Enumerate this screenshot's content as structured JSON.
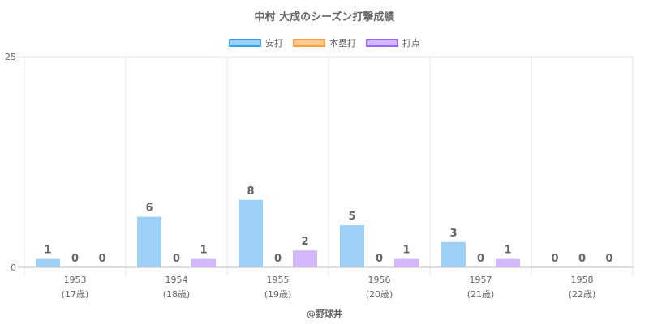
{
  "title": "中村 大成のシーズン打撃成績",
  "footer": "@野球丼",
  "legend": [
    {
      "label": "安打",
      "fill": "#9ecff5",
      "border": "#36a2eb"
    },
    {
      "label": "本塁打",
      "fill": "#ffc98f",
      "border": "#ff9f40"
    },
    {
      "label": "打点",
      "fill": "#d2b8fa",
      "border": "#9966ff"
    }
  ],
  "chart_data": {
    "type": "bar",
    "title": "中村 大成のシーズン打撃成績",
    "categories": [
      "1953",
      "1954",
      "1955",
      "1956",
      "1957",
      "1958"
    ],
    "subcategories": [
      "(17歳)",
      "(18歳)",
      "(19歳)",
      "(20歳)",
      "(21歳)",
      "(22歳)"
    ],
    "series": [
      {
        "name": "安打",
        "values": [
          1,
          6,
          8,
          5,
          3,
          0
        ],
        "color": "#9ecff5"
      },
      {
        "name": "本塁打",
        "values": [
          0,
          0,
          0,
          0,
          0,
          0
        ],
        "color": "#ffc98f"
      },
      {
        "name": "打点",
        "values": [
          0,
          1,
          2,
          1,
          1,
          0
        ],
        "color": "#d2b8fa"
      }
    ],
    "ylim": [
      0,
      25
    ],
    "yticks": [
      0,
      25
    ],
    "grid": true,
    "legend": "top-center",
    "data_labels": true
  }
}
